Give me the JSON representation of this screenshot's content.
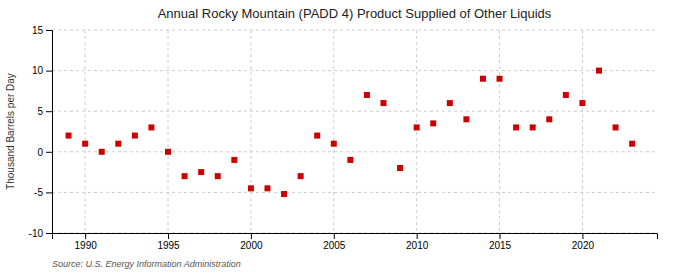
{
  "chart_data": {
    "type": "scatter",
    "title": "Annual Rocky Mountain (PADD 4) Product Supplied of Other Liquids",
    "ylabel": "Thousand Barrels per Day",
    "source": "Source: U.S. Energy Information Administration",
    "x": [
      1989,
      1990,
      1991,
      1992,
      1993,
      1994,
      1995,
      1996,
      1997,
      1998,
      1999,
      2000,
      2001,
      2002,
      2003,
      2004,
      2005,
      2006,
      2007,
      2008,
      2009,
      2010,
      2011,
      2012,
      2013,
      2014,
      2015,
      2016,
      2017,
      2018,
      2019,
      2020,
      2021,
      2022,
      2023
    ],
    "values": [
      2.0,
      1.0,
      0.0,
      1.0,
      2.0,
      3.0,
      0.0,
      -3.0,
      -2.5,
      -3.0,
      -1.0,
      -4.5,
      -4.5,
      -5.2,
      -3.0,
      2.0,
      1.0,
      -1.0,
      7.0,
      6.0,
      -2.0,
      3.0,
      3.5,
      6.0,
      4.0,
      9.0,
      9.0,
      3.0,
      3.0,
      4.0,
      7.0,
      6.0,
      10.0,
      3.0,
      1.0
    ],
    "color": "#cc0000",
    "marker": "square",
    "ylim": [
      -10,
      15
    ],
    "yticks": [
      -10,
      -5,
      0,
      5,
      10,
      15
    ],
    "xlim": [
      1988.0,
      2024.5
    ],
    "xticks": [
      1990,
      1995,
      2000,
      2005,
      2010,
      2015,
      2020
    ],
    "grid": true
  }
}
